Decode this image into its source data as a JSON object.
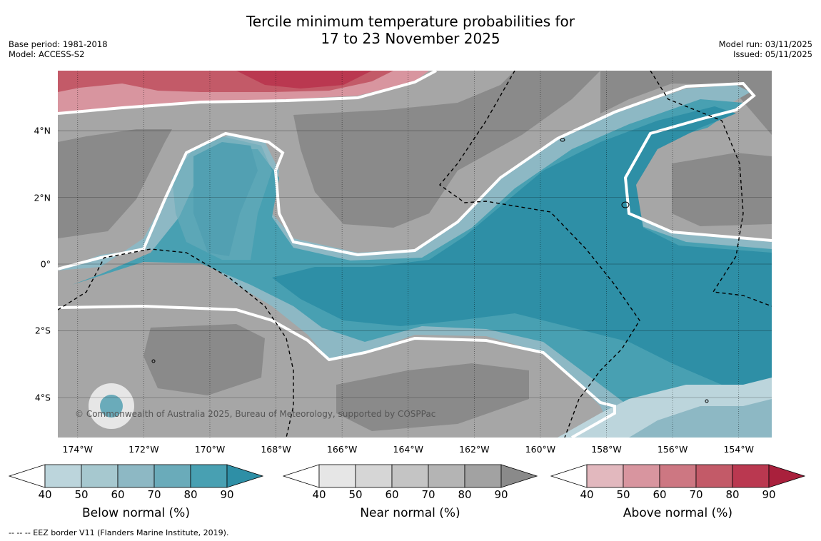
{
  "title": {
    "line1": "Tercile minimum temperature probabilities for",
    "line2": "17 to 23 November 2025"
  },
  "meta_left": {
    "base_period": "Base period: 1981-2018",
    "model": "Model: ACCESS-S2"
  },
  "meta_right": {
    "model_run": "Model run: 03/11/2025",
    "issued": "Issued: 05/11/2025"
  },
  "copyright": "© Commonwealth of Australia 2025, Bureau of Meteorology, supported by COSPPac",
  "footnote": "--  --  -- EEZ border V11 (Flanders Marine Institute, 2019).",
  "chart_data": {
    "type": "heatmap",
    "title": "Tercile minimum temperature probabilities for 17 to 23 November 2025",
    "x_axis": {
      "range": [
        -174.6,
        -153.0
      ],
      "tick_labels": [
        "174°W",
        "172°W",
        "170°W",
        "168°W",
        "166°W",
        "164°W",
        "162°W",
        "160°W",
        "158°W",
        "156°W",
        "154°W"
      ],
      "tick_values": [
        -174,
        -172,
        -170,
        -168,
        -166,
        -164,
        -162,
        -160,
        -158,
        -156,
        -154
      ]
    },
    "y_axis": {
      "range": [
        -5.2,
        5.8
      ],
      "tick_labels": [
        "4°N",
        "2°N",
        "0°",
        "2°S",
        "4°S"
      ],
      "tick_values": [
        4,
        2,
        0,
        -2,
        -4
      ]
    },
    "grid": true,
    "colorbars": [
      {
        "name": "below",
        "label": "Below normal (%)",
        "ticks": [
          "40",
          "50",
          "60",
          "70",
          "80",
          "90"
        ],
        "colors": [
          "#bcd5dc",
          "#a6c8cf",
          "#8db8c4",
          "#6aabba",
          "#48a0b2",
          "#2e8fa6"
        ]
      },
      {
        "name": "near",
        "label": "Near normal (%)",
        "ticks": [
          "40",
          "50",
          "60",
          "70",
          "80",
          "90"
        ],
        "colors": [
          "#e6e6e6",
          "#d6d6d6",
          "#c4c4c4",
          "#b4b4b4",
          "#a2a2a2",
          "#8a8a8a"
        ]
      },
      {
        "name": "above",
        "label": "Above normal (%)",
        "ticks": [
          "40",
          "50",
          "60",
          "70",
          "80",
          "90"
        ],
        "colors": [
          "#e2b8be",
          "#d8959f",
          "#cd7782",
          "#c35a68",
          "#ba3850",
          "#a9203c"
        ]
      }
    ],
    "regions": [
      {
        "category": "above",
        "level": 70,
        "description": "northern edge 168W-174W"
      },
      {
        "category": "near",
        "level": 80,
        "description": "north-west and central-north"
      },
      {
        "category": "below",
        "level": 90,
        "description": "equatorial band 166W-153W"
      },
      {
        "category": "below",
        "level": 90,
        "description": "pocket near 170W 3N"
      },
      {
        "category": "near",
        "level": 80,
        "description": "south-west 170W-174W 3S"
      },
      {
        "category": "near",
        "level": 80,
        "description": "south central 162W-166W 4S"
      },
      {
        "category": "near",
        "level": 80,
        "description": "east near 154W 2.5N"
      },
      {
        "category": "below",
        "level": 60,
        "description": "south-east 158W-153W 4S"
      }
    ]
  }
}
